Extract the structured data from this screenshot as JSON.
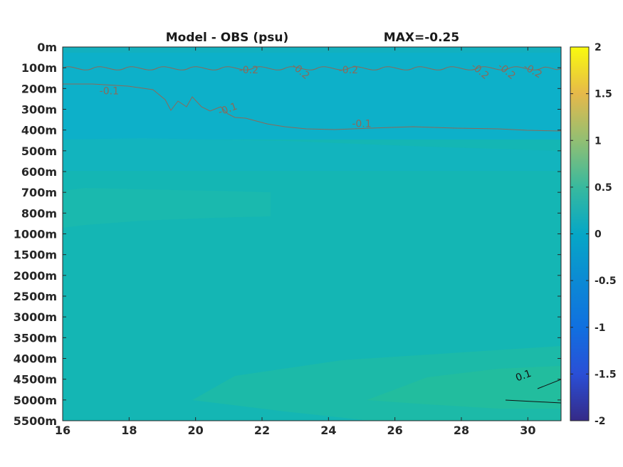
{
  "chart_data": {
    "type": "heatmap",
    "title": "Model - OBS (psu)",
    "subtitle": "MAX=-0.25",
    "x_ticks": [
      "16",
      "18",
      "20",
      "22",
      "24",
      "26",
      "28",
      "30"
    ],
    "xlim": [
      16,
      31
    ],
    "y_ticks": [
      "0m",
      "100m",
      "200m",
      "300m",
      "400m",
      "500m",
      "600m",
      "700m",
      "800m",
      "1000m",
      "1500m",
      "2000m",
      "2500m",
      "3000m",
      "3500m",
      "4000m",
      "4500m",
      "5000m",
      "5500m"
    ],
    "colorbar": {
      "ticks": [
        "2",
        "1.5",
        "1",
        "0.5",
        "0",
        "-0.5",
        "-1",
        "-1.5",
        "-2"
      ],
      "range": [
        -2,
        2
      ],
      "colormap": "parula"
    },
    "contour_labels": [
      {
        "text": "-0.1",
        "x": 17.4,
        "depth": "200m",
        "color": "#8a6a5a"
      },
      {
        "text": "-0.2",
        "x": 21.6,
        "depth": "100m",
        "color": "#8a6a5a"
      },
      {
        "text": "-0.2",
        "x": 23.1,
        "depth": "100m",
        "color": "#8a6a5a"
      },
      {
        "text": "-0.2",
        "x": 24.6,
        "depth": "100m",
        "color": "#8a6a5a"
      },
      {
        "text": "-0.2",
        "x": 28.5,
        "depth": "100m",
        "color": "#8a6a5a"
      },
      {
        "text": "-0.2",
        "x": 29.3,
        "depth": "100m",
        "color": "#8a6a5a"
      },
      {
        "text": "-0.2",
        "x": 30.1,
        "depth": "100m",
        "color": "#8a6a5a"
      },
      {
        "text": "-0.1",
        "x": 21.0,
        "depth": "300m",
        "color": "#8a6a5a"
      },
      {
        "text": "-0.1",
        "x": 25.0,
        "depth": "400m",
        "color": "#8a6a5a"
      },
      {
        "text": "0.1",
        "x": 29.9,
        "depth": "5000m",
        "color": "#111111"
      }
    ],
    "colors": {
      "background_field": "#14b4b8",
      "upper_field": "#0eb0c8",
      "warm_band": "#22b8a4",
      "deep_patch": "#2cbc98",
      "contour_negative": "#8a6a5a",
      "contour_positive": "#111111"
    }
  }
}
